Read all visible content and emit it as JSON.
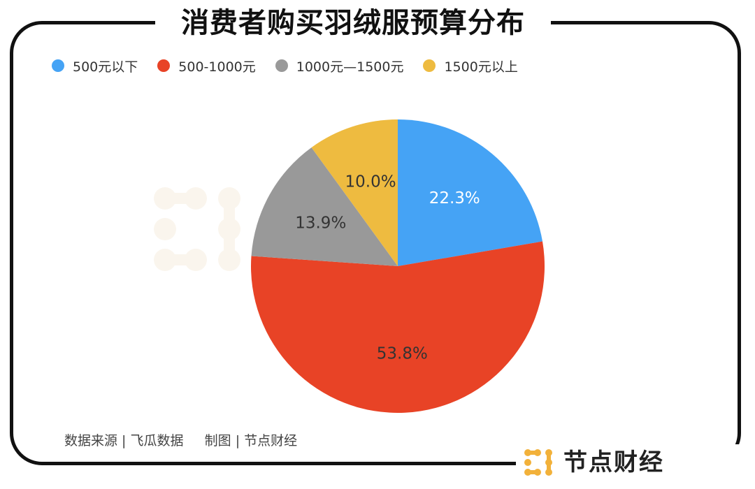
{
  "title": "消费者购买羽绒服预算分布",
  "source": "数据来源 | 飞瓜数据     制图 | 节点财经",
  "logo": "节点财经",
  "watermark": "经",
  "colors": {
    "blue": "#45a3f5",
    "red": "#e84326",
    "gray": "#999999",
    "yellow": "#eebb40",
    "logo_orange": "#f2b13a"
  },
  "chart_data": {
    "type": "pie",
    "title": "消费者购买羽绒服预算分布",
    "legend_position": "top-left",
    "series": [
      {
        "labels": [
          "500元以下",
          "500-1000元",
          "1000元—1500元",
          "1500元以上"
        ],
        "values": [
          22.3,
          53.8,
          13.9,
          10.0
        ],
        "data_labels": [
          "22.3%",
          "53.8%",
          "13.9%",
          "10.0%"
        ],
        "colors": [
          "#45a3f5",
          "#e84326",
          "#999999",
          "#eebb40"
        ],
        "label_colors": [
          "#ffffff",
          "#333333",
          "#333333",
          "#333333"
        ]
      }
    ]
  }
}
